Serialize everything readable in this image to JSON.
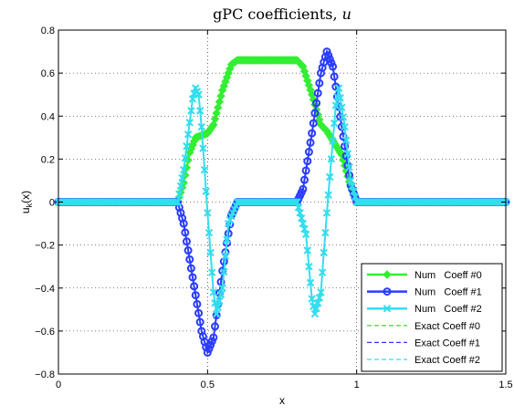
{
  "chart_data": {
    "type": "line",
    "title": "gPC coefficients, u",
    "title_prefix": "gPC coefficients, ",
    "title_var": "u",
    "xlabel": "x",
    "ylabel": "u_k(x)",
    "ylabel_main": "u",
    "ylabel_sub": "k",
    "ylabel_suffix": "(x)",
    "xlim": [
      0,
      1.5
    ],
    "ylim": [
      -0.8,
      0.8
    ],
    "xticks": [
      0,
      0.5,
      1,
      1.5
    ],
    "xtick_labels": [
      "0",
      "0.5",
      "1",
      "1.5"
    ],
    "yticks": [
      -0.8,
      -0.6,
      -0.4,
      -0.2,
      0,
      0.2,
      0.4,
      0.6,
      0.8
    ],
    "ytick_labels": [
      "−0.8",
      "−0.6",
      "−0.4",
      "−0.2",
      "0",
      "0.2",
      "0.4",
      "0.6",
      "0.8"
    ],
    "grid": "dotted",
    "legend_position": "bottom-right",
    "series": [
      {
        "name": "Num   Coeff #0",
        "color": "#33ee33",
        "marker": "diamond",
        "style": "solid",
        "x": [
          0,
          0.4,
          0.42,
          0.44,
          0.46,
          0.5,
          0.52,
          0.55,
          0.58,
          0.6,
          0.7,
          0.8,
          0.82,
          0.85,
          0.88,
          0.9,
          0.95,
          0.98,
          1.0,
          1.5
        ],
        "y": [
          0,
          0,
          0.09,
          0.23,
          0.3,
          0.32,
          0.36,
          0.52,
          0.64,
          0.66,
          0.66,
          0.66,
          0.63,
          0.5,
          0.36,
          0.33,
          0.22,
          0.07,
          0,
          0
        ]
      },
      {
        "name": "Num   Coeff #1",
        "color": "#2a3cff",
        "marker": "circle",
        "style": "solid",
        "x": [
          0,
          0.4,
          0.42,
          0.45,
          0.48,
          0.5,
          0.52,
          0.55,
          0.58,
          0.6,
          0.7,
          0.8,
          0.82,
          0.85,
          0.88,
          0.9,
          0.92,
          0.95,
          0.98,
          1.0,
          1.5
        ],
        "y": [
          0,
          0,
          -0.1,
          -0.35,
          -0.6,
          -0.7,
          -0.63,
          -0.32,
          -0.06,
          0,
          0,
          0,
          0.06,
          0.32,
          0.6,
          0.7,
          0.63,
          0.35,
          0.08,
          0,
          0
        ]
      },
      {
        "name": "Num   Coeff #2",
        "color": "#33ddee",
        "marker": "x",
        "style": "solid",
        "x": [
          0,
          0.4,
          0.42,
          0.45,
          0.46,
          0.47,
          0.48,
          0.5,
          0.52,
          0.53,
          0.55,
          0.57,
          0.6,
          0.7,
          0.8,
          0.83,
          0.85,
          0.86,
          0.88,
          0.9,
          0.93,
          0.94,
          0.96,
          0.98,
          1.0,
          1.5
        ],
        "y": [
          0,
          0,
          0.15,
          0.48,
          0.53,
          0.5,
          0.35,
          -0.05,
          -0.42,
          -0.52,
          -0.4,
          -0.1,
          0,
          0,
          0,
          -0.15,
          -0.45,
          -0.52,
          -0.42,
          -0.05,
          0.45,
          0.53,
          0.35,
          0.1,
          0,
          0
        ]
      },
      {
        "name": "Exact Coeff #0",
        "color": "#33ee33",
        "style": "dashed",
        "x": [],
        "y": []
      },
      {
        "name": "Exact Coeff #1",
        "color": "#2a3cff",
        "style": "dashed",
        "x": [],
        "y": []
      },
      {
        "name": "Exact Coeff #2",
        "color": "#33ddee",
        "style": "dashed",
        "x": [],
        "y": []
      }
    ]
  }
}
